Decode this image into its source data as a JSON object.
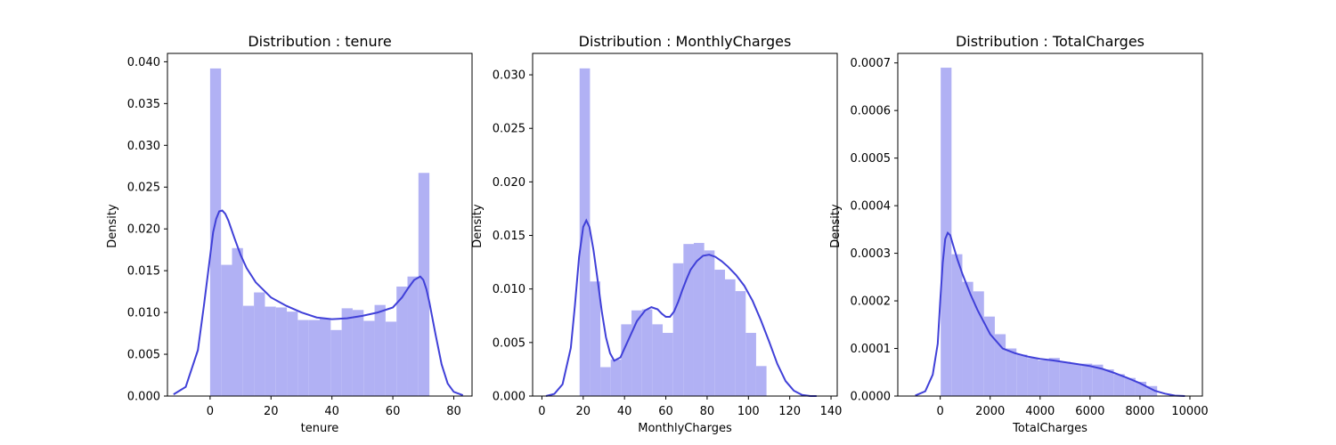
{
  "figure": {
    "background": "#ffffff",
    "bar_color": "#b1b1f4",
    "line_color": "#4040d8"
  },
  "chart_data": [
    {
      "type": "histogram",
      "title": "Distribution : tenure",
      "xlabel": "tenure",
      "ylabel": "Density",
      "xlim": [
        -14,
        86
      ],
      "ylim": [
        0,
        0.041
      ],
      "xticks": [
        0,
        20,
        40,
        60,
        80
      ],
      "xtick_labels": [
        "0",
        "20",
        "40",
        "60",
        "80"
      ],
      "yticks": [
        0,
        0.005,
        0.01,
        0.015,
        0.02,
        0.025,
        0.03,
        0.035,
        0.04
      ],
      "ytick_labels": [
        "0.000",
        "0.005",
        "0.010",
        "0.015",
        "0.020",
        "0.025",
        "0.030",
        "0.035",
        "0.040"
      ],
      "bin_edges": [
        0,
        3.6,
        7.2,
        10.8,
        14.4,
        18,
        21.6,
        25.2,
        28.8,
        32.4,
        36,
        39.6,
        43.2,
        46.8,
        50.4,
        54,
        57.6,
        61.2,
        64.8,
        68.4,
        72
      ],
      "densities": [
        0.0392,
        0.0157,
        0.0177,
        0.0108,
        0.0124,
        0.0107,
        0.0106,
        0.0101,
        0.0091,
        0.0091,
        0.0093,
        0.0079,
        0.0105,
        0.0103,
        0.009,
        0.0109,
        0.0089,
        0.0131,
        0.0143,
        0.0267
      ],
      "kde": {
        "x": [
          -12,
          -8,
          -4,
          -2,
          0,
          1,
          2,
          3,
          4,
          5,
          6,
          8,
          10,
          12,
          15,
          20,
          25,
          30,
          35,
          40,
          45,
          50,
          55,
          60,
          63,
          65,
          67,
          69,
          70,
          71,
          72,
          74,
          76,
          78,
          80,
          83
        ],
        "y": [
          0.0002,
          0.0011,
          0.0055,
          0.0109,
          0.0167,
          0.0196,
          0.0212,
          0.0221,
          0.0222,
          0.0218,
          0.021,
          0.0189,
          0.0169,
          0.0153,
          0.0136,
          0.0118,
          0.0108,
          0.01,
          0.0094,
          0.0092,
          0.0093,
          0.0096,
          0.01,
          0.0106,
          0.0118,
          0.0129,
          0.0139,
          0.0143,
          0.0139,
          0.0128,
          0.0112,
          0.0074,
          0.0038,
          0.0015,
          0.0005,
          0.0001
        ]
      }
    },
    {
      "type": "histogram",
      "title": "Distribution : MonthlyCharges",
      "xlabel": "MonthlyCharges",
      "ylabel": "Density",
      "xlim": [
        -4.5,
        143
      ],
      "ylim": [
        0,
        0.032
      ],
      "xticks": [
        0,
        20,
        40,
        60,
        80,
        100,
        120,
        140
      ],
      "xtick_labels": [
        "0",
        "20",
        "40",
        "60",
        "80",
        "100",
        "120",
        "140"
      ],
      "yticks": [
        0,
        0.005,
        0.01,
        0.015,
        0.02,
        0.025,
        0.03
      ],
      "ytick_labels": [
        "0.000",
        "0.005",
        "0.010",
        "0.015",
        "0.020",
        "0.025",
        "0.030"
      ],
      "bin_edges": [
        18.25,
        23.28,
        28.31,
        33.33,
        38.36,
        43.39,
        48.42,
        53.45,
        58.48,
        63.51,
        68.53,
        73.56,
        78.59,
        83.62,
        88.65,
        93.68,
        98.7,
        103.73,
        108.76,
        113.79,
        118.82
      ],
      "densities": [
        0.0306,
        0.0107,
        0.0027,
        0.0034,
        0.0067,
        0.008,
        0.0081,
        0.0067,
        0.0059,
        0.0124,
        0.0142,
        0.0143,
        0.0136,
        0.0118,
        0.0109,
        0.0098,
        0.0059,
        0.0028,
        0,
        0
      ],
      "kde": {
        "x": [
          2,
          6,
          10,
          14,
          16,
          18,
          20,
          21.5,
          23,
          25,
          27,
          29,
          31,
          33,
          35,
          38,
          42,
          46,
          50,
          53,
          56,
          58,
          60,
          62,
          64,
          66,
          68,
          70,
          72,
          75,
          78,
          81,
          84,
          87,
          90,
          94,
          98,
          102,
          106,
          110,
          114,
          118,
          122,
          126,
          130,
          133
        ],
        "y": [
          0.0,
          0.0002,
          0.0011,
          0.0045,
          0.0085,
          0.013,
          0.0158,
          0.0164,
          0.0158,
          0.0136,
          0.0108,
          0.0079,
          0.0055,
          0.004,
          0.0033,
          0.0036,
          0.0053,
          0.007,
          0.008,
          0.0083,
          0.0081,
          0.0077,
          0.0074,
          0.0074,
          0.0079,
          0.0088,
          0.0099,
          0.0109,
          0.0118,
          0.0126,
          0.0131,
          0.0132,
          0.013,
          0.0126,
          0.0121,
          0.0113,
          0.0103,
          0.0089,
          0.0071,
          0.0051,
          0.003,
          0.0014,
          0.0005,
          0.0001,
          0.0,
          0.0
        ]
      }
    },
    {
      "type": "histogram",
      "title": "Distribution : TotalCharges",
      "xlabel": "TotalCharges",
      "ylabel": "Density",
      "xlim": [
        -1700,
        10500
      ],
      "ylim": [
        0,
        0.00072
      ],
      "xticks": [
        0,
        2000,
        4000,
        6000,
        8000,
        10000
      ],
      "xtick_labels": [
        "0",
        "2000",
        "4000",
        "6000",
        "8000",
        "10000"
      ],
      "yticks": [
        0,
        0.0001,
        0.0002,
        0.0003,
        0.0004,
        0.0005,
        0.0006,
        0.0007
      ],
      "ytick_labels": [
        "0.0000",
        "0.0001",
        "0.0002",
        "0.0003",
        "0.0004",
        "0.0005",
        "0.0006",
        "0.0007"
      ],
      "bin_edges": [
        18.8,
        452.3,
        885.8,
        1319.3,
        1752.8,
        2186.3,
        2619.8,
        3053.3,
        3486.8,
        3920.3,
        4353.8,
        4787.3,
        5220.8,
        5654.3,
        6087.8,
        6521.3,
        6954.8,
        7388.3,
        7821.8,
        8255.3,
        8688.8
      ],
      "densities": [
        0.00069,
        0.000298,
        0.00024,
        0.00022,
        0.000167,
        0.00013,
        0.0001,
        8.7e-05,
        8e-05,
        7.5e-05,
        8e-05,
        7.2e-05,
        6.8e-05,
        6.8e-05,
        6.6e-05,
        5.6e-05,
        4.6e-05,
        3.8e-05,
        3e-05,
        2.1e-05
      ],
      "kde": {
        "x": [
          -1000,
          -600,
          -300,
          -100,
          0,
          100,
          200,
          300,
          400,
          500,
          700,
          900,
          1200,
          1500,
          2000,
          2500,
          3000,
          3500,
          4000,
          4500,
          5000,
          5500,
          6000,
          6500,
          7000,
          7500,
          8000,
          8300,
          8600,
          9000,
          9400,
          9800
        ],
        "y": [
          1e-06,
          1e-05,
          4.5e-05,
          0.00011,
          0.0002,
          0.00028,
          0.00033,
          0.000343,
          0.000338,
          0.00032,
          0.000285,
          0.000255,
          0.000215,
          0.00018,
          0.00013,
          0.0001,
          9e-05,
          8.3e-05,
          7.8e-05,
          7.5e-05,
          7.1e-05,
          6.7e-05,
          6.3e-05,
          5.7e-05,
          4.8e-05,
          3.8e-05,
          2.7e-05,
          1.9e-05,
          1.1e-05,
          5e-06,
          1e-06,
          0.0
        ]
      }
    }
  ]
}
